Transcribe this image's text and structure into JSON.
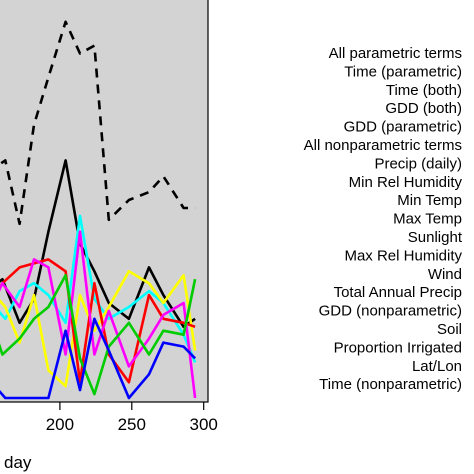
{
  "chart_data": {
    "type": "line",
    "xlabel": "day",
    "xticks": [
      200,
      250,
      300
    ],
    "xlim": [
      150,
      303
    ],
    "ylim": [
      0,
      1
    ],
    "legend_position": "right",
    "grid": false,
    "background": "#d3d3d3",
    "series": [
      {
        "name": "All parametric terms",
        "color": "#000000",
        "dash": "dashed",
        "x": [
          150,
          162,
          172,
          182,
          192,
          204,
          214,
          224,
          234,
          248,
          262,
          272,
          286,
          294
        ],
        "y": [
          0.58,
          0.61,
          0.45,
          0.7,
          0.82,
          0.96,
          0.88,
          0.9,
          0.46,
          0.51,
          0.53,
          0.57,
          0.49,
          0.49
        ]
      },
      {
        "name": "Time (parametric)",
        "color": "#000000",
        "dash": "solid",
        "x": [
          150,
          160,
          172,
          182,
          192,
          204,
          214,
          224,
          234,
          248,
          262,
          272,
          286,
          294
        ],
        "y": [
          0.28,
          0.31,
          0.2,
          0.26,
          0.43,
          0.61,
          0.4,
          0.33,
          0.25,
          0.21,
          0.34,
          0.27,
          0.19,
          0.21
        ]
      },
      {
        "name": "Time (both)",
        "color": "#00ffff",
        "dash": "solid",
        "x": [
          150,
          162,
          172,
          182,
          192,
          204,
          214,
          224,
          234,
          248,
          262,
          272,
          286,
          294
        ],
        "y": [
          0.26,
          0.21,
          0.28,
          0.3,
          0.27,
          0.2,
          0.47,
          0.26,
          0.21,
          0.24,
          0.28,
          0.25,
          0.17,
          0.1
        ]
      },
      {
        "name": "Max Temp",
        "color": "#ffff00",
        "dash": "solid",
        "x": [
          150,
          162,
          172,
          182,
          192,
          204,
          214,
          224,
          234,
          248,
          262,
          272,
          286,
          294
        ],
        "y": [
          0.29,
          0.24,
          0.15,
          0.27,
          0.08,
          0.04,
          0.27,
          0.18,
          0.24,
          0.33,
          0.3,
          0.25,
          0.32,
          0.13
        ]
      },
      {
        "name": "Precip (daily)",
        "color": "#ff0000",
        "dash": "solid",
        "x": [
          150,
          160,
          172,
          182,
          192,
          204,
          214,
          224,
          234,
          248,
          262,
          272,
          286,
          294
        ],
        "y": [
          0.24,
          0.3,
          0.34,
          0.35,
          0.36,
          0.33,
          0.05,
          0.3,
          0.12,
          0.05,
          0.27,
          0.21,
          0.2,
          0.19
        ]
      },
      {
        "name": "GDD (both)",
        "color": "#ff00ff",
        "dash": "solid",
        "x": [
          150,
          160,
          172,
          182,
          192,
          204,
          214,
          224,
          234,
          248,
          262,
          272,
          286,
          294
        ],
        "y": [
          0.22,
          0.3,
          0.24,
          0.36,
          0.34,
          0.12,
          0.43,
          0.12,
          0.23,
          0.09,
          0.16,
          0.22,
          0.25,
          0.01
        ]
      },
      {
        "name": "Max Rel Humidity",
        "color": "#00cc00",
        "dash": "solid",
        "x": [
          150,
          160,
          172,
          182,
          192,
          204,
          214,
          224,
          234,
          248,
          262,
          272,
          286,
          294
        ],
        "y": [
          0.23,
          0.12,
          0.16,
          0.21,
          0.24,
          0.32,
          0.11,
          0.02,
          0.14,
          0.2,
          0.12,
          0.18,
          0.17,
          0.31
        ]
      },
      {
        "name": "Min Rel Humidity",
        "color": "#0000ff",
        "dash": "solid",
        "x": [
          150,
          162,
          172,
          182,
          192,
          204,
          214,
          224,
          234,
          248,
          262,
          272,
          286,
          294
        ],
        "y": [
          0.06,
          0.01,
          0.01,
          0.01,
          0.01,
          0.18,
          0.03,
          0.21,
          0.13,
          0.01,
          0.07,
          0.15,
          0.14,
          0.11
        ]
      }
    ],
    "legend": [
      "All parametric terms",
      "Time (parametric)",
      "Time (both)",
      "GDD (both)",
      "GDD (parametric)",
      "All nonparametric terms",
      "Precip (daily)",
      "Min Rel Humidity",
      "Min Temp",
      "Max Temp",
      "Sunlight",
      "Max Rel Humidity",
      "Wind",
      "Total Annual Precip",
      "GDD (nonparametric)",
      "Soil",
      "Proportion Irrigated",
      "Lat/Lon",
      "Time (nonparametric)"
    ]
  }
}
